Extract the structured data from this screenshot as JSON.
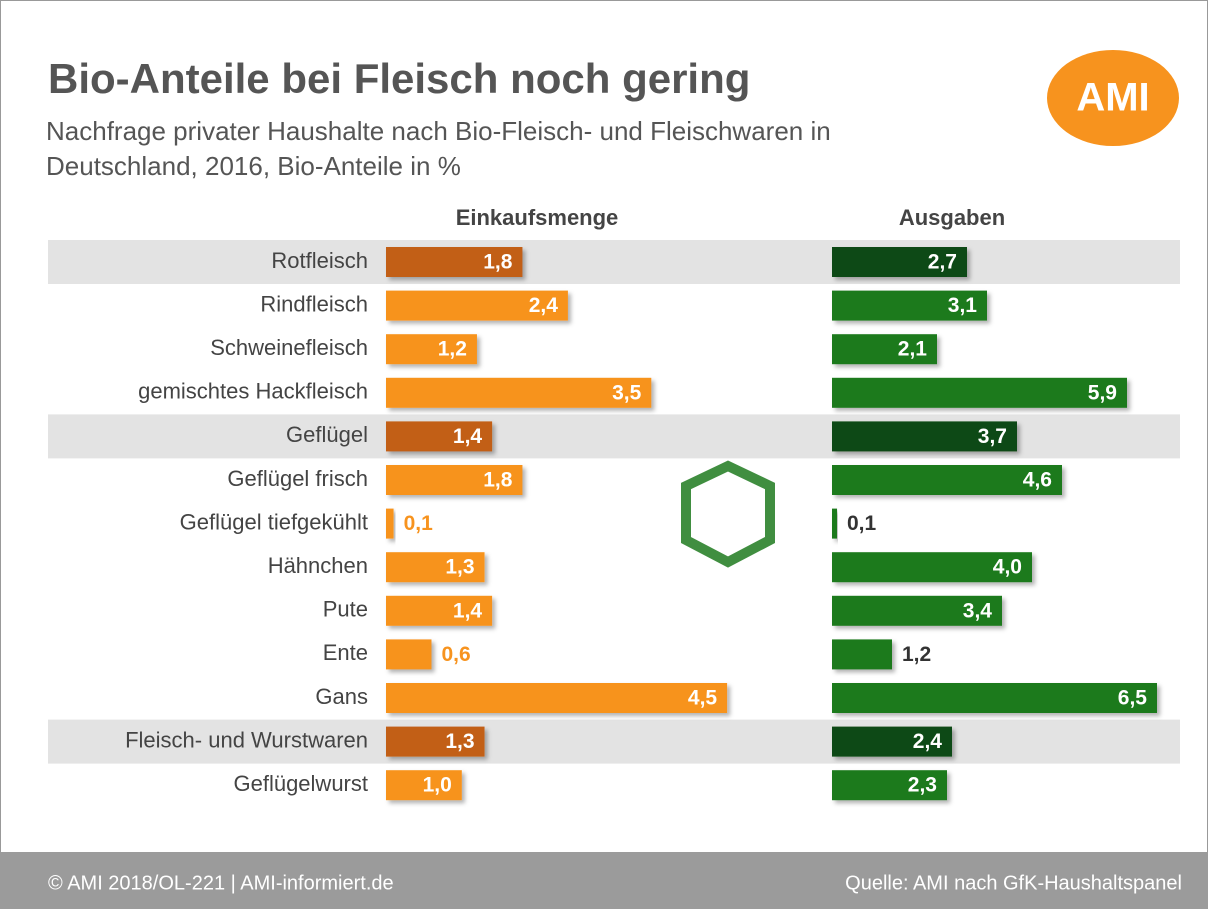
{
  "chart_data": {
    "type": "bar",
    "orientation": "horizontal",
    "title": "Bio-Anteile bei Fleisch noch gering",
    "subtitle": "Nachfrage privater Haushalte nach Bio-Fleisch- und Fleischwaren in Deutschland, 2016, Bio-Anteile in %",
    "logo": "AMI",
    "categories": [
      "Rotfleisch",
      "Rindfleisch",
      "Schweinefleisch",
      "gemischtes Hackfleisch",
      "Geflügel",
      "Geflügel frisch",
      "Geflügel tiefgekühlt",
      "Hähnchen",
      "Pute",
      "Ente",
      "Gans",
      "Fleisch- und Wurstwaren",
      "Geflügelwurst"
    ],
    "series": [
      {
        "name": "Einkaufsmenge",
        "color": "#f7931e",
        "xlim": [
          0,
          5
        ],
        "colors": [
          "#c25f16",
          "#f7931e",
          "#f7931e",
          "#f7931e",
          "#c25f16",
          "#f7931e",
          "#f7931e",
          "#f7931e",
          "#f7931e",
          "#f7931e",
          "#f7931e",
          "#c25f16",
          "#f7931e"
        ],
        "values": [
          1.8,
          2.4,
          1.2,
          3.5,
          1.4,
          1.8,
          0.1,
          1.3,
          1.4,
          0.6,
          4.5,
          1.3,
          1.0
        ],
        "value_labels": [
          "1,8",
          "2,4",
          "1,2",
          "3,5",
          "1,4",
          "1,8",
          "0,1",
          "1,3",
          "1,4",
          "0,6",
          "4,5",
          "1,3",
          "1,0"
        ]
      },
      {
        "name": "Ausgaben",
        "color": "#1f7a1f",
        "xlim": [
          0,
          7
        ],
        "colors": [
          "#0f4a12",
          "#1f7a1f",
          "#1f7a1f",
          "#1f7a1f",
          "#0f4a12",
          "#1f7a1f",
          "#1f7a1f",
          "#1f7a1f",
          "#1f7a1f",
          "#1f7a1f",
          "#1f7a1f",
          "#0f4a12",
          "#1f7a1f"
        ],
        "values": [
          2.7,
          3.1,
          2.1,
          5.9,
          3.7,
          4.6,
          0.1,
          4.0,
          3.4,
          1.2,
          6.5,
          2.4,
          2.3
        ],
        "value_labels": [
          "2,7",
          "3,1",
          "2,1",
          "5,9",
          "3,7",
          "4,6",
          "0,1",
          "4,0",
          "3,4",
          "1,2",
          "6,5",
          "2,4",
          "2,3"
        ]
      }
    ],
    "highlighted_rows": [
      0,
      4,
      11
    ],
    "footer_left": "© AMI 2018/OL-221 | AMI-informiert.de",
    "footer_right": "Quelle: AMI nach GfK-Haushaltspanel"
  }
}
